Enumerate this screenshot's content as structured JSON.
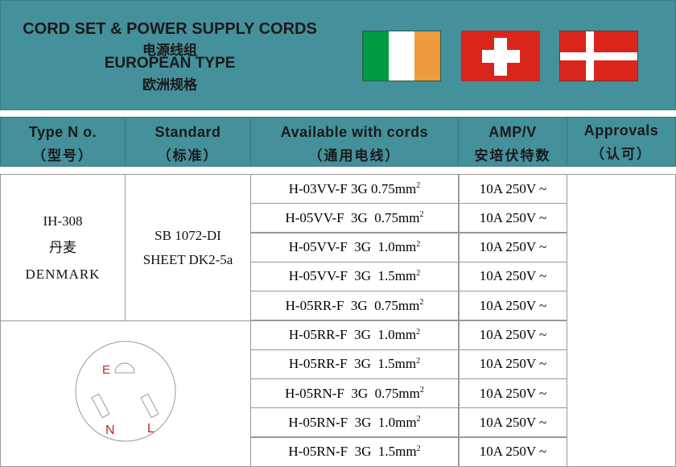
{
  "header": {
    "title_en": "CORD SET & POWER SUPPLY CORDS",
    "title_zh": "电源线组",
    "subtitle_en": "EUROPEAN TYPE",
    "subtitle_zh": "欧洲规格",
    "flags": [
      {
        "name": "ireland-flag",
        "colors": [
          "#009a44",
          "#ffffff",
          "#ef9a3d"
        ]
      },
      {
        "name": "switzerland-flag",
        "colors": [
          "#da251d",
          "#ffffff"
        ]
      },
      {
        "name": "denmark-flag",
        "colors": [
          "#da251d",
          "#ffffff"
        ]
      }
    ]
  },
  "columns": [
    {
      "en": "Type N o.",
      "zh": "（型号）"
    },
    {
      "en": "Standard",
      "zh": "（标准）"
    },
    {
      "en": "Available with cords",
      "zh": "（通用电线）"
    },
    {
      "en": "AMP/V",
      "zh": "安培伏特数"
    },
    {
      "en": "Approvals",
      "zh": "（认可）"
    }
  ],
  "product": {
    "type_no": "IH-308",
    "country_zh": "丹麦",
    "country_en": "DENMARK",
    "standard_line1": "SB 1072-DI",
    "standard_line2": "SHEET DK2-5a",
    "plug_labels": {
      "earth": "E",
      "neutral": "N",
      "live": "L"
    }
  },
  "rows": [
    {
      "cord": "H-03VV-F 3G 0.75mm",
      "sup": "2",
      "amp": "10A 250V ~"
    },
    {
      "cord": "H-05VV-F  3G  0.75mm",
      "sup": "2",
      "amp": "10A 250V ~"
    },
    {
      "cord": "H-05VV-F  3G  1.0mm",
      "sup": "2",
      "amp": "10A 250V ~"
    },
    {
      "cord": "H-05VV-F  3G  1.5mm",
      "sup": "2",
      "amp": "10A 250V ~"
    },
    {
      "cord": "H-05RR-F  3G  0.75mm",
      "sup": "2",
      "amp": "10A 250V ~"
    },
    {
      "cord": "H-05RR-F  3G  1.0mm",
      "sup": "2",
      "amp": "10A 250V ~"
    },
    {
      "cord": "H-05RR-F  3G  1.5mm",
      "sup": "2",
      "amp": "10A 250V ~"
    },
    {
      "cord": "H-05RN-F  3G  0.75mm",
      "sup": "2",
      "amp": "10A 250V ~"
    },
    {
      "cord": "H-05RN-F  3G  1.0mm",
      "sup": "2",
      "amp": "10A 250V ~"
    },
    {
      "cord": "H-05RN-F  3G  1.5mm",
      "sup": "2",
      "amp": "10A 250V ~"
    }
  ]
}
